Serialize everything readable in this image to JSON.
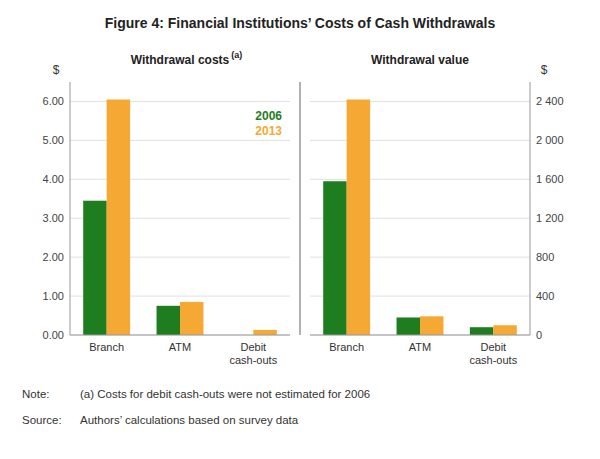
{
  "title": "Figure 4: Financial Institutions’ Costs of Cash Withdrawals",
  "annotations": [
    "Note:",
    "(a) Costs for debit cash-outs were not estimated for 2006",
    "Source:",
    "Authors’ calculations based on survey data"
  ],
  "chart_data": [
    {
      "type": "bar",
      "title": "Withdrawal costs",
      "annotations": [
        "(a)"
      ],
      "ylabel": "$",
      "categories": [
        "Branch",
        "ATM",
        "Debit\ncash-outs"
      ],
      "series": [
        {
          "name": "2006",
          "color": "#1e7d1e",
          "values": [
            3.45,
            0.75,
            null
          ]
        },
        {
          "name": "2013",
          "color": "#f5a833",
          "values": [
            6.05,
            0.85,
            0.13
          ]
        }
      ],
      "ylim": [
        0,
        6.5
      ],
      "yticks": [
        {
          "value": 0,
          "label": "0.00"
        },
        {
          "value": 1,
          "label": "1.00"
        },
        {
          "value": 2,
          "label": "2.00"
        },
        {
          "value": 3,
          "label": "3.00"
        },
        {
          "value": 4,
          "label": "4.00"
        },
        {
          "value": 5,
          "label": "5.00"
        },
        {
          "value": 6,
          "label": "6.00"
        }
      ],
      "grid": true,
      "legend": "top-right"
    },
    {
      "type": "bar",
      "title": "Withdrawal value",
      "ylabel": "$",
      "categories": [
        "Branch",
        "ATM",
        "Debit\ncash-outs"
      ],
      "series": [
        {
          "color": "#1e7d1e",
          "values": [
            1580,
            180,
            80
          ]
        },
        {
          "color": "#f5a833",
          "values": [
            2420,
            192,
            100
          ]
        }
      ],
      "ylim": [
        0,
        2600
      ],
      "yticks": [
        0,
        400,
        800,
        {
          "value": 1200,
          "label": "1 200"
        },
        {
          "value": 1600,
          "label": "1 600"
        },
        {
          "value": 2000,
          "label": "2 000"
        },
        {
          "value": 2400,
          "label": "2 400"
        }
      ],
      "grid": true
    }
  ]
}
